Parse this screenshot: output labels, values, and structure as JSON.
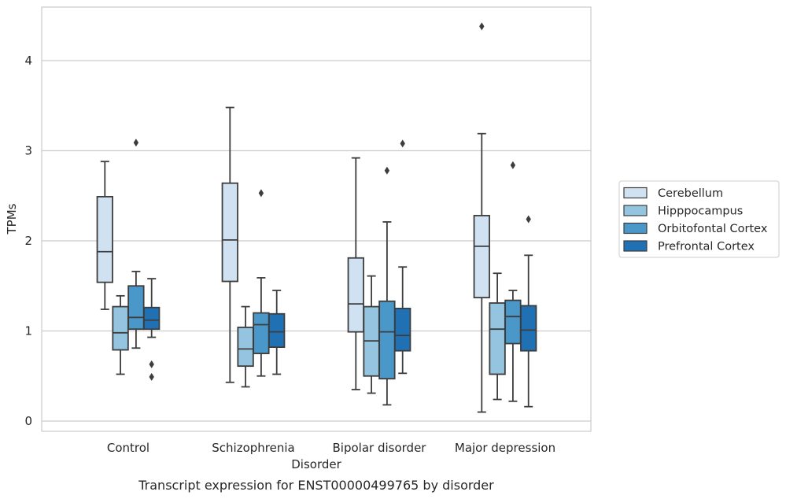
{
  "chart_data": {
    "type": "box",
    "caption": "Transcript expression for ENST00000499765 by disorder",
    "xlabel": "Disorder",
    "ylabel": "TPMs",
    "ylim": [
      -0.12,
      4.6
    ],
    "yticks": [
      0,
      1,
      2,
      3,
      4
    ],
    "grid": true,
    "legend_position": "right",
    "categories": [
      "Control",
      "Schizophrenia",
      "Bipolar disorder",
      "Major depression"
    ],
    "series": [
      {
        "name": "Cerebellum",
        "color": "#d0e1f2",
        "boxes": [
          {
            "whislo": 1.24,
            "q1": 1.54,
            "med": 1.88,
            "q3": 2.49,
            "whishi": 2.88,
            "fliers": []
          },
          {
            "whislo": 0.43,
            "q1": 1.55,
            "med": 2.01,
            "q3": 2.64,
            "whishi": 3.48,
            "fliers": []
          },
          {
            "whislo": 0.35,
            "q1": 0.99,
            "med": 1.3,
            "q3": 1.81,
            "whishi": 2.92,
            "fliers": []
          },
          {
            "whislo": 0.1,
            "q1": 1.37,
            "med": 1.94,
            "q3": 2.28,
            "whishi": 3.19,
            "fliers": [
              4.38
            ]
          }
        ]
      },
      {
        "name": "Hipppocampus",
        "color": "#94c4df",
        "boxes": [
          {
            "whislo": 0.52,
            "q1": 0.79,
            "med": 0.98,
            "q3": 1.27,
            "whishi": 1.39,
            "fliers": []
          },
          {
            "whislo": 0.38,
            "q1": 0.61,
            "med": 0.8,
            "q3": 1.04,
            "whishi": 1.27,
            "fliers": []
          },
          {
            "whislo": 0.31,
            "q1": 0.5,
            "med": 0.89,
            "q3": 1.27,
            "whishi": 1.61,
            "fliers": []
          },
          {
            "whislo": 0.24,
            "q1": 0.52,
            "med": 1.02,
            "q3": 1.31,
            "whishi": 1.64,
            "fliers": []
          }
        ]
      },
      {
        "name": "Orbitofontal Cortex",
        "color": "#4a98c9",
        "boxes": [
          {
            "whislo": 0.81,
            "q1": 1.02,
            "med": 1.15,
            "q3": 1.5,
            "whishi": 1.66,
            "fliers": [
              3.09
            ]
          },
          {
            "whislo": 0.5,
            "q1": 0.75,
            "med": 1.07,
            "q3": 1.2,
            "whishi": 1.59,
            "fliers": [
              2.53
            ]
          },
          {
            "whislo": 0.18,
            "q1": 0.47,
            "med": 0.99,
            "q3": 1.33,
            "whishi": 2.21,
            "fliers": [
              2.78
            ]
          },
          {
            "whislo": 0.22,
            "q1": 0.86,
            "med": 1.16,
            "q3": 1.34,
            "whishi": 1.45,
            "fliers": [
              2.84
            ]
          }
        ]
      },
      {
        "name": "Prefrontal Cortex",
        "color": "#2070b4",
        "boxes": [
          {
            "whislo": 0.93,
            "q1": 1.02,
            "med": 1.12,
            "q3": 1.26,
            "whishi": 1.58,
            "fliers": [
              0.63,
              0.49
            ]
          },
          {
            "whislo": 0.52,
            "q1": 0.82,
            "med": 0.99,
            "q3": 1.19,
            "whishi": 1.45,
            "fliers": []
          },
          {
            "whislo": 0.53,
            "q1": 0.78,
            "med": 0.95,
            "q3": 1.25,
            "whishi": 1.71,
            "fliers": [
              3.08
            ]
          },
          {
            "whislo": 0.16,
            "q1": 0.78,
            "med": 1.01,
            "q3": 1.28,
            "whishi": 1.84,
            "fliers": [
              2.24
            ]
          }
        ]
      }
    ]
  }
}
